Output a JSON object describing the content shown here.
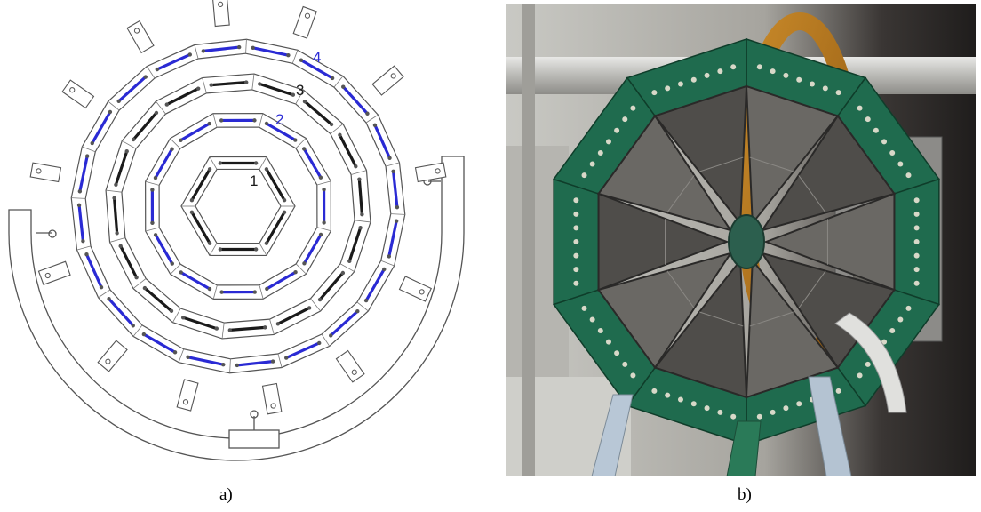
{
  "panel_a": {
    "caption": "a)",
    "layer_labels": [
      {
        "text": "1",
        "color": "#1a1a1a"
      },
      {
        "text": "2",
        "color": "#2b2bd6"
      },
      {
        "text": "3",
        "color": "#1a1a1a"
      },
      {
        "text": "4",
        "color": "#2b2bd6"
      }
    ]
  },
  "panel_b": {
    "caption": "b)"
  },
  "colors": {
    "blue_ladder": "#2a2ad4",
    "black_ladder": "#1a1a1a",
    "outline": "#444444",
    "board_green": "#1f6b4e",
    "silicon": "#5c5a58"
  }
}
